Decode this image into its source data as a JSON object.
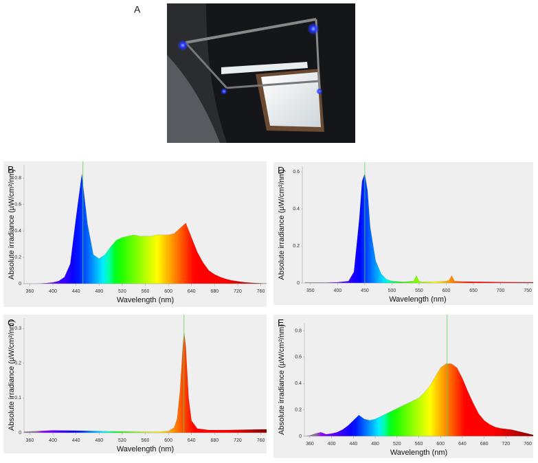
{
  "photo_label": "A",
  "chart_data": [
    {
      "type": "area",
      "label": "B",
      "x_label": "Wavelength (nm)",
      "y_label": "Absolute irradiance (µW/cm²/nm)",
      "xlim": [
        350,
        770
      ],
      "xticks": [
        360,
        400,
        440,
        480,
        520,
        560,
        600,
        640,
        680,
        720,
        760
      ],
      "ylim": [
        0,
        0.9
      ],
      "yticks": [
        0,
        0.2,
        0.4,
        0.6,
        0.8
      ],
      "marker": 452,
      "x": [
        350,
        360,
        370,
        380,
        390,
        400,
        410,
        420,
        430,
        440,
        450,
        460,
        470,
        480,
        490,
        500,
        510,
        520,
        530,
        540,
        550,
        560,
        570,
        580,
        590,
        600,
        610,
        620,
        630,
        640,
        650,
        660,
        670,
        680,
        690,
        700,
        710,
        720,
        730,
        740,
        750,
        760,
        770
      ],
      "values": [
        0,
        0,
        0,
        0.002,
        0.005,
        0.01,
        0.02,
        0.05,
        0.15,
        0.5,
        0.83,
        0.45,
        0.22,
        0.19,
        0.22,
        0.28,
        0.33,
        0.35,
        0.36,
        0.37,
        0.36,
        0.36,
        0.36,
        0.37,
        0.37,
        0.37,
        0.38,
        0.42,
        0.46,
        0.35,
        0.24,
        0.16,
        0.1,
        0.07,
        0.05,
        0.035,
        0.025,
        0.018,
        0.012,
        0.008,
        0.005,
        0.003,
        0.002
      ]
    },
    {
      "type": "area",
      "label": "D",
      "x_label": "Wavelength (nm)",
      "y_label": "Absolute irradiance (µW/cm²/nm)",
      "xlim": [
        335,
        760
      ],
      "xticks": [
        350,
        400,
        450,
        500,
        550,
        600,
        650,
        700,
        750
      ],
      "ylim": [
        0,
        0.63
      ],
      "yticks": [
        0,
        0.2,
        0.4,
        0.6
      ],
      "marker": 450,
      "x": [
        340,
        380,
        400,
        420,
        430,
        440,
        445,
        450,
        455,
        460,
        470,
        480,
        490,
        500,
        520,
        540,
        545,
        550,
        555,
        580,
        600,
        605,
        610,
        615,
        630,
        700,
        760
      ],
      "values": [
        0.003,
        0.003,
        0.004,
        0.01,
        0.06,
        0.35,
        0.55,
        0.59,
        0.5,
        0.3,
        0.12,
        0.05,
        0.02,
        0.01,
        0.006,
        0.01,
        0.04,
        0.01,
        0.006,
        0.008,
        0.01,
        0.015,
        0.04,
        0.01,
        0.008,
        0.005,
        0.004
      ]
    },
    {
      "type": "area",
      "label": "C",
      "x_label": "Wavelength (nm)",
      "y_label": "Absolute irradiance (µW/cm²/nm)",
      "xlim": [
        350,
        770
      ],
      "xticks": [
        360,
        400,
        440,
        480,
        520,
        560,
        600,
        640,
        680,
        720,
        760
      ],
      "ylim": [
        0,
        0.33
      ],
      "yticks": [
        0,
        0.1,
        0.2,
        0.3
      ],
      "marker": 627,
      "x": [
        350,
        400,
        450,
        500,
        550,
        580,
        600,
        610,
        615,
        620,
        625,
        627,
        630,
        635,
        640,
        650,
        670,
        700,
        770
      ],
      "values": [
        0.003,
        0.007,
        0.006,
        0.004,
        0.003,
        0.003,
        0.005,
        0.015,
        0.04,
        0.12,
        0.25,
        0.29,
        0.25,
        0.1,
        0.035,
        0.012,
        0.008,
        0.008,
        0.01
      ]
    },
    {
      "type": "area",
      "label": "E",
      "x_label": "Wavelength (nm)",
      "y_label": "Absolute irradiance (µW/cm²/nm)",
      "xlim": [
        350,
        770
      ],
      "xticks": [
        360,
        400,
        440,
        480,
        520,
        560,
        600,
        640,
        680,
        720,
        760
      ],
      "ylim": [
        0,
        0.86
      ],
      "yticks": [
        0,
        0.2,
        0.4,
        0.6,
        0.8
      ],
      "marker": 612,
      "x": [
        350,
        360,
        370,
        380,
        390,
        400,
        410,
        420,
        430,
        440,
        450,
        460,
        470,
        480,
        490,
        500,
        510,
        520,
        530,
        540,
        550,
        560,
        570,
        580,
        590,
        600,
        610,
        620,
        630,
        640,
        650,
        660,
        670,
        680,
        690,
        700,
        710,
        720,
        730,
        740,
        750,
        760,
        770
      ],
      "values": [
        0,
        0.005,
        0.02,
        0.03,
        0.015,
        0.02,
        0.03,
        0.05,
        0.08,
        0.12,
        0.16,
        0.13,
        0.12,
        0.13,
        0.15,
        0.17,
        0.19,
        0.21,
        0.23,
        0.25,
        0.27,
        0.29,
        0.33,
        0.38,
        0.45,
        0.52,
        0.55,
        0.55,
        0.52,
        0.44,
        0.34,
        0.25,
        0.17,
        0.12,
        0.09,
        0.07,
        0.06,
        0.055,
        0.05,
        0.04,
        0.03,
        0.02,
        0.01
      ]
    }
  ]
}
